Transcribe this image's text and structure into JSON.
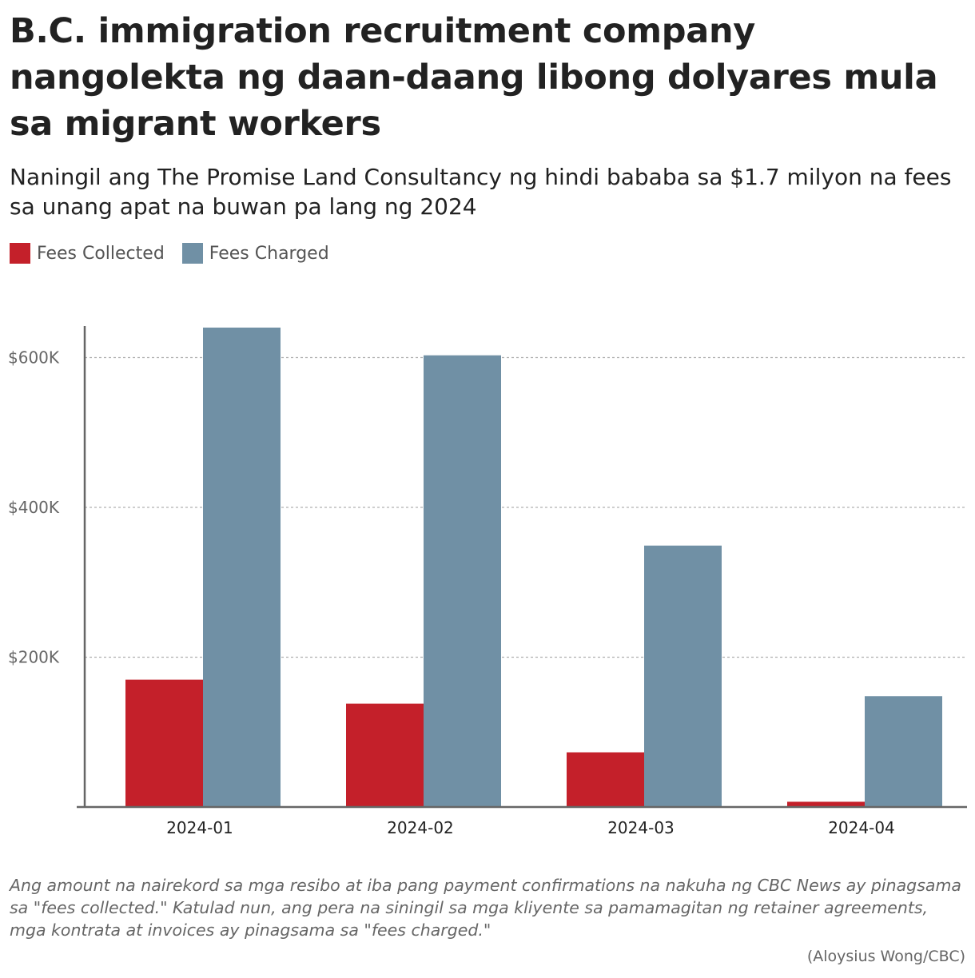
{
  "title": "B.C. immigration recruitment company nangolekta ng daan-daang libong dolyares mula sa migrant workers",
  "subtitle": "Naningil ang The Promise Land Consultancy ng hindi bababa sa $1.7 milyon na fees sa unang apat na buwan pa lang ng 2024",
  "note": "Ang amount na nairekord sa mga resibo at iba pang payment confirmations na nakuha ng CBC News ay pinagsama sa \"fees collected.\" Katulad nun, ang pera na siningil sa mga kliyente sa pamamagitan ng retainer agreements, mga kontrata at invoices ay pinagsama sa \"fees charged.\"",
  "credit": "(Aloysius Wong/CBC)",
  "chart_data": {
    "type": "bar",
    "categories": [
      "2024-01",
      "2024-02",
      "2024-03",
      "2024-04"
    ],
    "series": [
      {
        "name": "Fees Collected",
        "color": "#c4202a",
        "values": [
          170000,
          138000,
          73000,
          7000
        ]
      },
      {
        "name": "Fees Charged",
        "color": "#7090a5",
        "values": [
          640000,
          603000,
          349000,
          148000
        ]
      }
    ],
    "yticks": [
      {
        "value": 200000,
        "label": "$200K"
      },
      {
        "value": 400000,
        "label": "$400K"
      },
      {
        "value": 600000,
        "label": "$600K"
      }
    ],
    "ylim": [
      0,
      640000
    ],
    "grid": true,
    "legend_position": "top-left"
  }
}
